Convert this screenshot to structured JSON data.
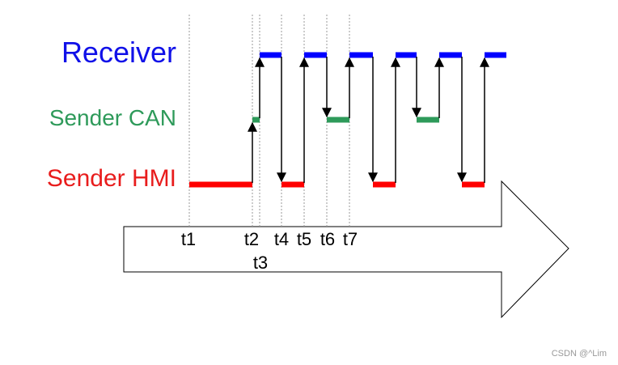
{
  "lanes": {
    "receiver": "Receiver",
    "sender_can": "Sender CAN",
    "sender_hmi": "Sender HMI"
  },
  "time_labels": [
    "t1",
    "t2",
    "t3",
    "t4",
    "t5",
    "t6",
    "t7"
  ],
  "watermark": "CSDN @^Lim"
}
